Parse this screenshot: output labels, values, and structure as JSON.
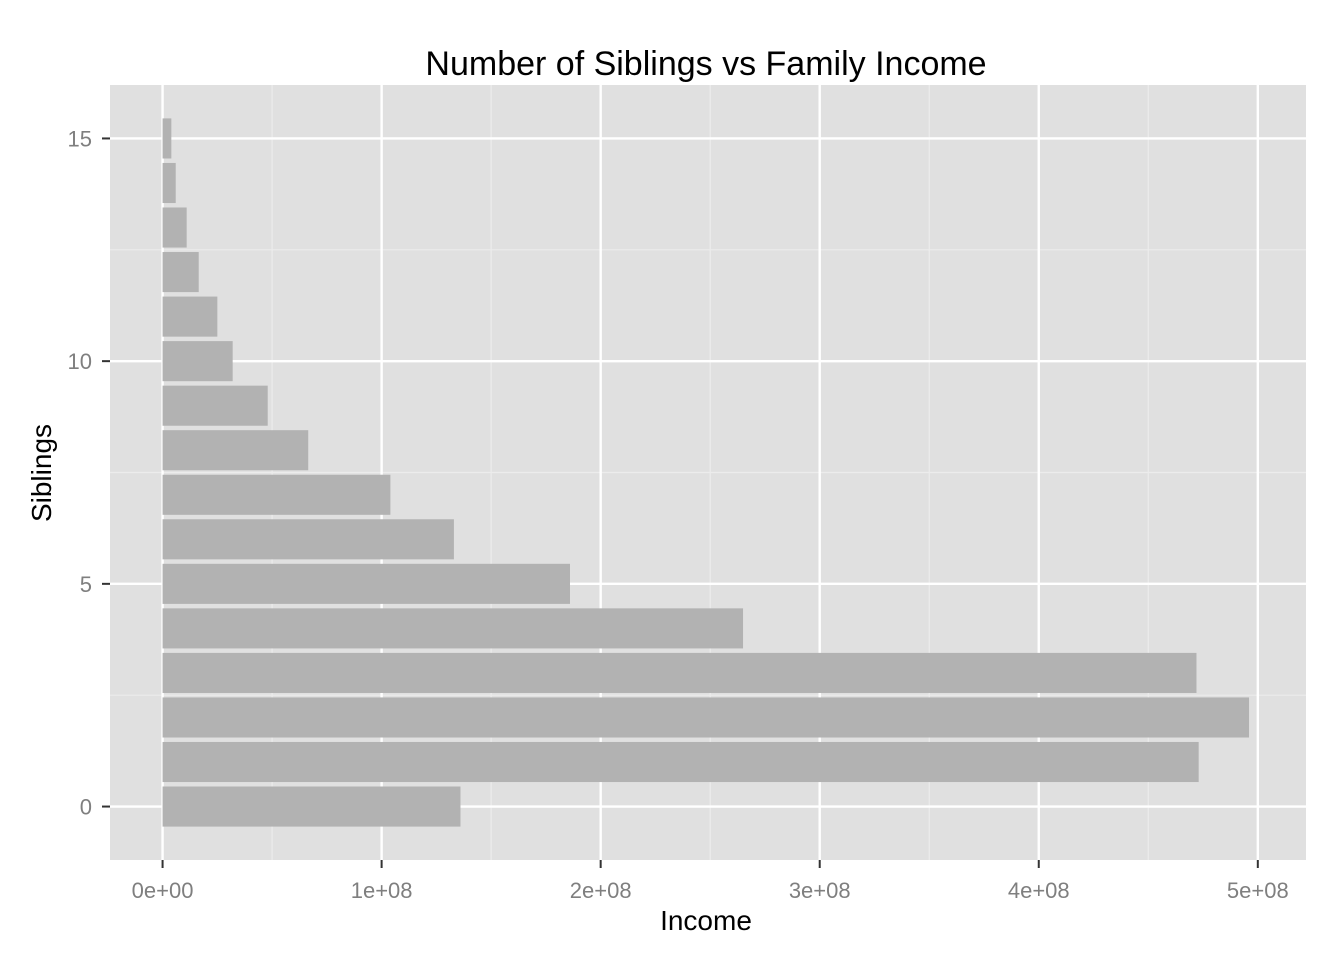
{
  "chart_data": {
    "type": "bar",
    "orientation": "horizontal",
    "title": "Number of Siblings vs Family Income",
    "xlabel": "Income",
    "ylabel": "Siblings",
    "categories": [
      0,
      1,
      2,
      3,
      4,
      5,
      6,
      7,
      8,
      9,
      10,
      11,
      12,
      13,
      14,
      15
    ],
    "values": [
      136000000,
      473000000,
      496000000,
      472000000,
      265000000,
      186000000,
      133000000,
      104000000,
      66500000,
      48000000,
      32000000,
      25000000,
      16500000,
      11000000,
      6000000,
      4000000
    ],
    "xlim": [
      -24000000,
      522000000
    ],
    "ylim": [
      -1.2,
      16.2
    ],
    "x_ticks": [
      0,
      100000000,
      200000000,
      300000000,
      400000000,
      500000000
    ],
    "x_tick_labels": [
      "0e+00",
      "1e+08",
      "2e+08",
      "3e+08",
      "4e+08",
      "5e+08"
    ],
    "y_ticks": [
      0,
      5,
      10,
      15
    ],
    "y_tick_labels": [
      "0",
      "5",
      "10",
      "15"
    ],
    "grid": true,
    "legend": "none",
    "colors": {
      "panel_background": "#e0e0e0",
      "grid_major": "#ffffff",
      "grid_minor": "#ececec",
      "bar_fill": "#b2b2b2",
      "tick_label": "#7f7f7f",
      "text": "#000000"
    }
  }
}
